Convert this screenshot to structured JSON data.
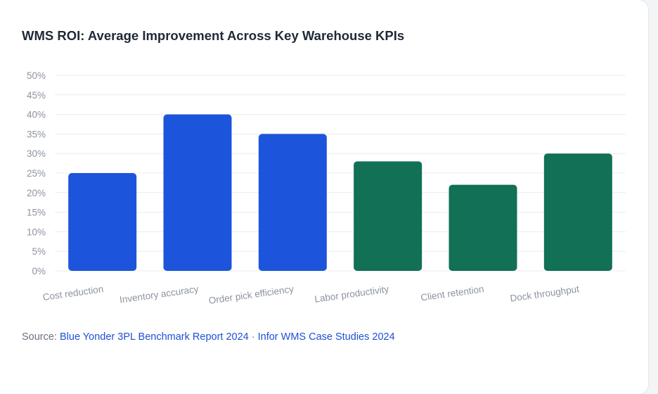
{
  "title": "WMS ROI: Average Improvement Across Key Warehouse KPIs",
  "source": {
    "label": "Source:",
    "link1": "Blue Yonder 3PL Benchmark Report 2024",
    "separator": "·",
    "link2": "Infor WMS Case Studies 2024"
  },
  "colors": {
    "blue": "#1c55dc",
    "green": "#117055",
    "grid": "#ececec",
    "tick": "#8c93a0"
  },
  "chart_data": {
    "type": "bar",
    "title": "WMS ROI: Average Improvement Across Key Warehouse KPIs",
    "xlabel": "",
    "ylabel": "",
    "categories": [
      "Cost reduction",
      "Inventory accuracy",
      "Order pick efficiency",
      "Labor productivity",
      "Client retention",
      "Dock throughput"
    ],
    "values": [
      25,
      40,
      35,
      28,
      22,
      30
    ],
    "bar_colors": [
      "blue",
      "blue",
      "blue",
      "green",
      "green",
      "green"
    ],
    "ylim": [
      0,
      50
    ],
    "yticks": [
      "0%",
      "5%",
      "10%",
      "15%",
      "20%",
      "25%",
      "30%",
      "35%",
      "40%",
      "45%",
      "50%"
    ],
    "grid": true,
    "legend": "none"
  }
}
